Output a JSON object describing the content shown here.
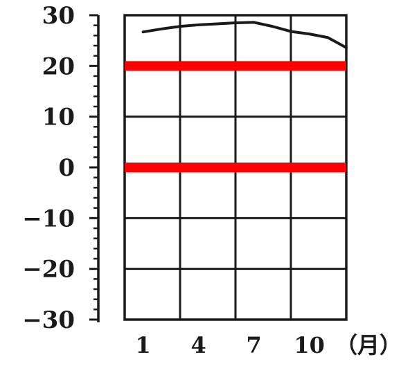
{
  "chart_data": {
    "type": "line",
    "title": "",
    "xlabel": "",
    "ylabel": "",
    "x_unit_label": "（月）",
    "x_ticks": [
      1,
      4,
      7,
      10
    ],
    "y_ticks": [
      30,
      20,
      10,
      0,
      -10,
      -20,
      -30
    ],
    "y_tick_labels": [
      "30",
      "20",
      "10",
      "0",
      "−10",
      "−20",
      "−30"
    ],
    "xlim": [
      0,
      12
    ],
    "ylim": [
      -30,
      30
    ],
    "grid": true,
    "series": [
      {
        "x": [
          1,
          2,
          3,
          4,
          5,
          6,
          7,
          8,
          9,
          10,
          11,
          12
        ],
        "values": [
          26.7,
          27.3,
          27.8,
          28.1,
          28.3,
          28.5,
          28.6,
          27.8,
          26.8,
          26.3,
          25.6,
          23.6
        ],
        "color": "#1a1a1a"
      }
    ],
    "reference_lines": [
      {
        "y": 20,
        "color": "#ff0000"
      },
      {
        "y": 0,
        "color": "#ff0000"
      }
    ]
  }
}
